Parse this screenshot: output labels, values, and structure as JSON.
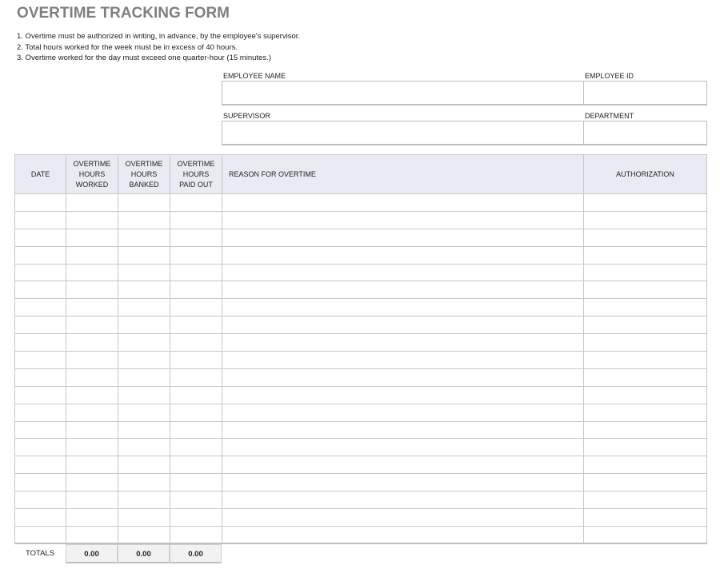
{
  "title": "OVERTIME TRACKING FORM",
  "rules": [
    "1. Overtime must be authorized in writing, in advance, by the employee's supervisor.",
    "2. Total hours worked for the week must be in excess of 40 hours.",
    "3. Overtime worked for the day must exceed one quarter-hour (15 minutes.)"
  ],
  "fields": {
    "employee_name": "EMPLOYEE NAME",
    "employee_id": "EMPLOYEE ID",
    "supervisor": "SUPERVISOR",
    "department": "DEPARTMENT"
  },
  "table": {
    "headers": [
      "DATE",
      "OVERTIME HOURS WORKED",
      "OVERTIME HOURS BANKED",
      "OVERTIME HOURS PAID OUT",
      "REASON FOR OVERTIME",
      "AUTHORIZATION"
    ],
    "row_count": 20
  },
  "totals": {
    "label": "TOTALS",
    "values": [
      "0.00",
      "0.00",
      "0.00"
    ]
  },
  "colors": {
    "header_bg": "#e8ecf2",
    "title": "#7f7f7f"
  }
}
